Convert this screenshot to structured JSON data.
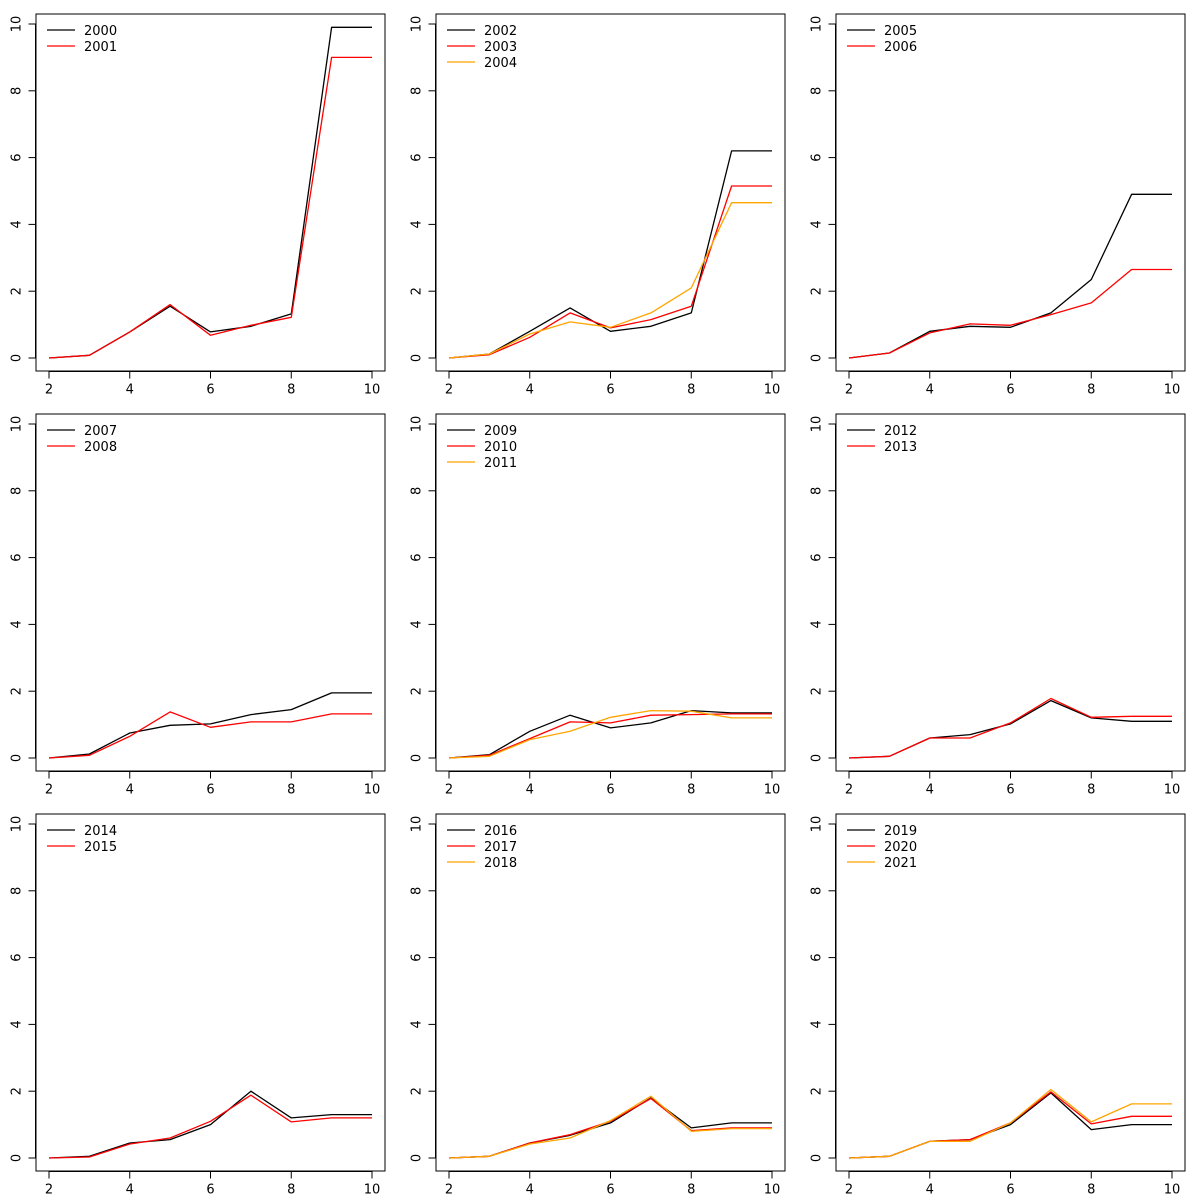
{
  "colors": [
    "#000000",
    "#ff0000",
    "#ffa500"
  ],
  "chart_data": [
    {
      "type": "line",
      "x": [
        2,
        3,
        4,
        5,
        6,
        7,
        8,
        9,
        10
      ],
      "xlim": [
        2,
        10
      ],
      "ylim": [
        0,
        10
      ],
      "xticks": [
        "2",
        "4",
        "6",
        "8",
        "10"
      ],
      "yticks": [
        "0",
        "2",
        "4",
        "6",
        "8",
        "10"
      ],
      "legend_position": "top-left",
      "series": [
        {
          "name": "2000",
          "values": [
            0,
            0.08,
            0.78,
            1.55,
            0.78,
            0.95,
            1.32,
            9.9,
            9.9
          ]
        },
        {
          "name": "2001",
          "values": [
            0,
            0.08,
            0.78,
            1.6,
            0.68,
            0.98,
            1.22,
            9.0,
            9.0
          ]
        }
      ]
    },
    {
      "type": "line",
      "x": [
        2,
        3,
        4,
        5,
        6,
        7,
        8,
        9,
        10
      ],
      "xlim": [
        2,
        10
      ],
      "ylim": [
        0,
        10
      ],
      "xticks": [
        "2",
        "4",
        "6",
        "8",
        "10"
      ],
      "yticks": [
        "0",
        "2",
        "4",
        "6",
        "8",
        "10"
      ],
      "legend_position": "top-left",
      "series": [
        {
          "name": "2002",
          "values": [
            0,
            0.12,
            0.8,
            1.5,
            0.8,
            0.95,
            1.35,
            6.2,
            6.2
          ]
        },
        {
          "name": "2003",
          "values": [
            0,
            0.1,
            0.62,
            1.35,
            0.9,
            1.15,
            1.55,
            5.15,
            5.15
          ]
        },
        {
          "name": "2004",
          "values": [
            0,
            0.12,
            0.72,
            1.08,
            0.92,
            1.35,
            2.1,
            4.65,
            4.65
          ]
        }
      ]
    },
    {
      "type": "line",
      "x": [
        2,
        3,
        4,
        5,
        6,
        7,
        8,
        9,
        10
      ],
      "xlim": [
        2,
        10
      ],
      "ylim": [
        0,
        10
      ],
      "xticks": [
        "2",
        "4",
        "6",
        "8",
        "10"
      ],
      "yticks": [
        "0",
        "2",
        "4",
        "6",
        "8",
        "10"
      ],
      "legend_position": "top-left",
      "series": [
        {
          "name": "2005",
          "values": [
            0,
            0.15,
            0.8,
            0.95,
            0.92,
            1.35,
            2.35,
            4.9,
            4.9
          ]
        },
        {
          "name": "2006",
          "values": [
            0,
            0.15,
            0.75,
            1.02,
            0.98,
            1.3,
            1.65,
            2.65,
            2.65
          ]
        }
      ]
    },
    {
      "type": "line",
      "x": [
        2,
        3,
        4,
        5,
        6,
        7,
        8,
        9,
        10
      ],
      "xlim": [
        2,
        10
      ],
      "ylim": [
        0,
        10
      ],
      "xticks": [
        "2",
        "4",
        "6",
        "8",
        "10"
      ],
      "yticks": [
        "0",
        "2",
        "4",
        "6",
        "8",
        "10"
      ],
      "legend_position": "top-left",
      "series": [
        {
          "name": "2007",
          "values": [
            0,
            0.12,
            0.75,
            0.98,
            1.02,
            1.3,
            1.45,
            1.95,
            1.95
          ]
        },
        {
          "name": "2008",
          "values": [
            0,
            0.08,
            0.65,
            1.38,
            0.92,
            1.08,
            1.08,
            1.32,
            1.32
          ]
        }
      ]
    },
    {
      "type": "line",
      "x": [
        2,
        3,
        4,
        5,
        6,
        7,
        8,
        9,
        10
      ],
      "xlim": [
        2,
        10
      ],
      "ylim": [
        0,
        10
      ],
      "xticks": [
        "2",
        "4",
        "6",
        "8",
        "10"
      ],
      "yticks": [
        "0",
        "2",
        "4",
        "6",
        "8",
        "10"
      ],
      "legend_position": "top-left",
      "series": [
        {
          "name": "2009",
          "values": [
            0,
            0.1,
            0.8,
            1.28,
            0.9,
            1.05,
            1.42,
            1.35,
            1.35
          ]
        },
        {
          "name": "2010",
          "values": [
            0,
            0.08,
            0.58,
            1.08,
            1.05,
            1.28,
            1.3,
            1.32,
            1.32
          ]
        },
        {
          "name": "2011",
          "values": [
            0,
            0.05,
            0.55,
            0.8,
            1.22,
            1.42,
            1.4,
            1.2,
            1.2
          ]
        }
      ]
    },
    {
      "type": "line",
      "x": [
        2,
        3,
        4,
        5,
        6,
        7,
        8,
        9,
        10
      ],
      "xlim": [
        2,
        10
      ],
      "ylim": [
        0,
        10
      ],
      "xticks": [
        "2",
        "4",
        "6",
        "8",
        "10"
      ],
      "yticks": [
        "0",
        "2",
        "4",
        "6",
        "8",
        "10"
      ],
      "legend_position": "top-left",
      "series": [
        {
          "name": "2012",
          "values": [
            0,
            0.05,
            0.6,
            0.7,
            1.02,
            1.72,
            1.2,
            1.1,
            1.1
          ]
        },
        {
          "name": "2013",
          "values": [
            0,
            0.05,
            0.6,
            0.6,
            1.05,
            1.78,
            1.22,
            1.25,
            1.25
          ]
        }
      ]
    },
    {
      "type": "line",
      "x": [
        2,
        3,
        4,
        5,
        6,
        7,
        8,
        9,
        10
      ],
      "xlim": [
        2,
        10
      ],
      "ylim": [
        0,
        10
      ],
      "xticks": [
        "2",
        "4",
        "6",
        "8",
        "10"
      ],
      "yticks": [
        "0",
        "2",
        "4",
        "6",
        "8",
        "10"
      ],
      "legend_position": "top-left",
      "series": [
        {
          "name": "2014",
          "values": [
            0,
            0.05,
            0.45,
            0.55,
            1.0,
            2.0,
            1.2,
            1.3,
            1.3
          ]
        },
        {
          "name": "2015",
          "values": [
            0,
            0.03,
            0.42,
            0.6,
            1.1,
            1.88,
            1.08,
            1.2,
            1.2
          ]
        }
      ]
    },
    {
      "type": "line",
      "x": [
        2,
        3,
        4,
        5,
        6,
        7,
        8,
        9,
        10
      ],
      "xlim": [
        2,
        10
      ],
      "ylim": [
        0,
        10
      ],
      "xticks": [
        "2",
        "4",
        "6",
        "8",
        "10"
      ],
      "yticks": [
        "0",
        "2",
        "4",
        "6",
        "8",
        "10"
      ],
      "legend_position": "top-left",
      "series": [
        {
          "name": "2016",
          "values": [
            0,
            0.05,
            0.45,
            0.68,
            1.05,
            1.8,
            0.9,
            1.05,
            1.05
          ]
        },
        {
          "name": "2017",
          "values": [
            0,
            0.05,
            0.45,
            0.7,
            1.1,
            1.78,
            0.82,
            0.9,
            0.9
          ]
        },
        {
          "name": "2018",
          "values": [
            0,
            0.05,
            0.42,
            0.6,
            1.12,
            1.85,
            0.8,
            0.88,
            0.88
          ]
        }
      ]
    },
    {
      "type": "line",
      "x": [
        2,
        3,
        4,
        5,
        6,
        7,
        8,
        9,
        10
      ],
      "xlim": [
        2,
        10
      ],
      "ylim": [
        0,
        10
      ],
      "xticks": [
        "2",
        "4",
        "6",
        "8",
        "10"
      ],
      "yticks": [
        "0",
        "2",
        "4",
        "6",
        "8",
        "10"
      ],
      "legend_position": "top-left",
      "series": [
        {
          "name": "2019",
          "values": [
            0,
            0.05,
            0.5,
            0.55,
            1.0,
            1.95,
            0.85,
            1.0,
            1.0
          ]
        },
        {
          "name": "2020",
          "values": [
            0,
            0.05,
            0.5,
            0.55,
            1.05,
            1.98,
            1.02,
            1.25,
            1.25
          ]
        },
        {
          "name": "2021",
          "values": [
            0,
            0.05,
            0.5,
            0.5,
            1.05,
            2.05,
            1.08,
            1.62,
            1.62
          ]
        }
      ]
    }
  ]
}
